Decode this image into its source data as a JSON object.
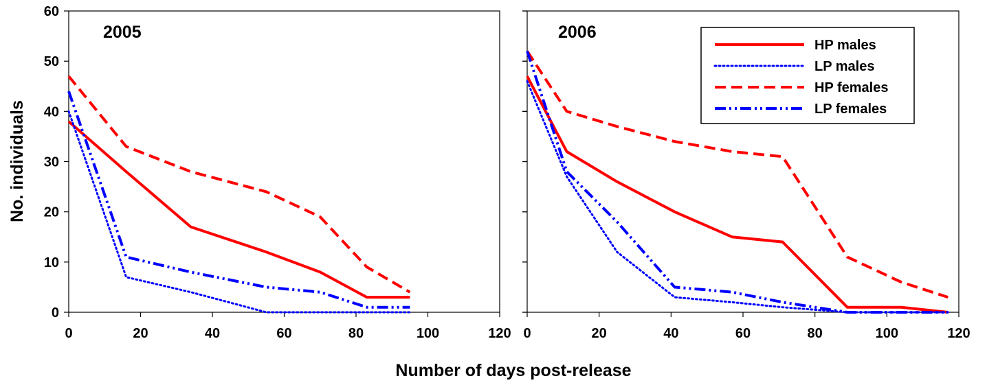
{
  "figure": {
    "xlabel": "Number of days post-release",
    "ylabel": "No. individuals"
  },
  "chart_data": [
    {
      "type": "line",
      "title": "2005",
      "xlim": [
        0,
        120
      ],
      "ylim": [
        0,
        60
      ],
      "xticks": [
        0,
        20,
        40,
        60,
        80,
        100,
        120
      ],
      "yticks": [
        0,
        10,
        20,
        30,
        40,
        50,
        60
      ],
      "legend": "none",
      "grid": false,
      "series": [
        {
          "name": "HP males",
          "color": "#ff0000",
          "dash": "solid",
          "x": [
            0,
            16,
            34,
            55,
            70,
            83,
            95
          ],
          "y": [
            38,
            28,
            17,
            12,
            8,
            3,
            3
          ]
        },
        {
          "name": "LP males",
          "color": "#0000ff",
          "dash": "dotted",
          "x": [
            0,
            16,
            34,
            55,
            70,
            83,
            95
          ],
          "y": [
            40,
            7,
            4,
            0,
            0,
            0,
            0
          ]
        },
        {
          "name": "HP females",
          "color": "#ff0000",
          "dash": "dashed",
          "x": [
            0,
            16,
            34,
            55,
            70,
            83,
            95
          ],
          "y": [
            47,
            33,
            28,
            24,
            19,
            9,
            4
          ]
        },
        {
          "name": "LP females",
          "color": "#0000ff",
          "dash": "dashdotdot",
          "x": [
            0,
            16,
            34,
            55,
            70,
            83,
            95
          ],
          "y": [
            44,
            11,
            8,
            5,
            4,
            1,
            1
          ]
        }
      ]
    },
    {
      "type": "line",
      "title": "2006",
      "xlim": [
        0,
        120
      ],
      "ylim": [
        0,
        60
      ],
      "xticks": [
        0,
        20,
        40,
        60,
        80,
        100,
        120
      ],
      "yticks": [
        0,
        10,
        20,
        30,
        40,
        50,
        60
      ],
      "legend": "top-right",
      "grid": false,
      "series": [
        {
          "name": "HP males",
          "color": "#ff0000",
          "dash": "solid",
          "x": [
            0,
            11,
            25,
            41,
            57,
            71,
            89,
            104,
            117
          ],
          "y": [
            47,
            32,
            26,
            20,
            15,
            14,
            1,
            1,
            0
          ]
        },
        {
          "name": "LP males",
          "color": "#0000ff",
          "dash": "dotted",
          "x": [
            0,
            11,
            25,
            41,
            57,
            71,
            89,
            104,
            117
          ],
          "y": [
            46,
            27,
            12,
            3,
            2,
            1,
            0,
            0,
            0
          ]
        },
        {
          "name": "HP females",
          "color": "#ff0000",
          "dash": "dashed",
          "x": [
            0,
            11,
            25,
            41,
            57,
            71,
            89,
            104,
            117
          ],
          "y": [
            52,
            40,
            37,
            34,
            32,
            31,
            11,
            6,
            3
          ]
        },
        {
          "name": "LP females",
          "color": "#0000ff",
          "dash": "dashdotdot",
          "x": [
            0,
            11,
            25,
            41,
            57,
            71,
            89,
            104,
            117
          ],
          "y": [
            52,
            28,
            18,
            5,
            4,
            2,
            0,
            0,
            0
          ]
        }
      ]
    }
  ]
}
